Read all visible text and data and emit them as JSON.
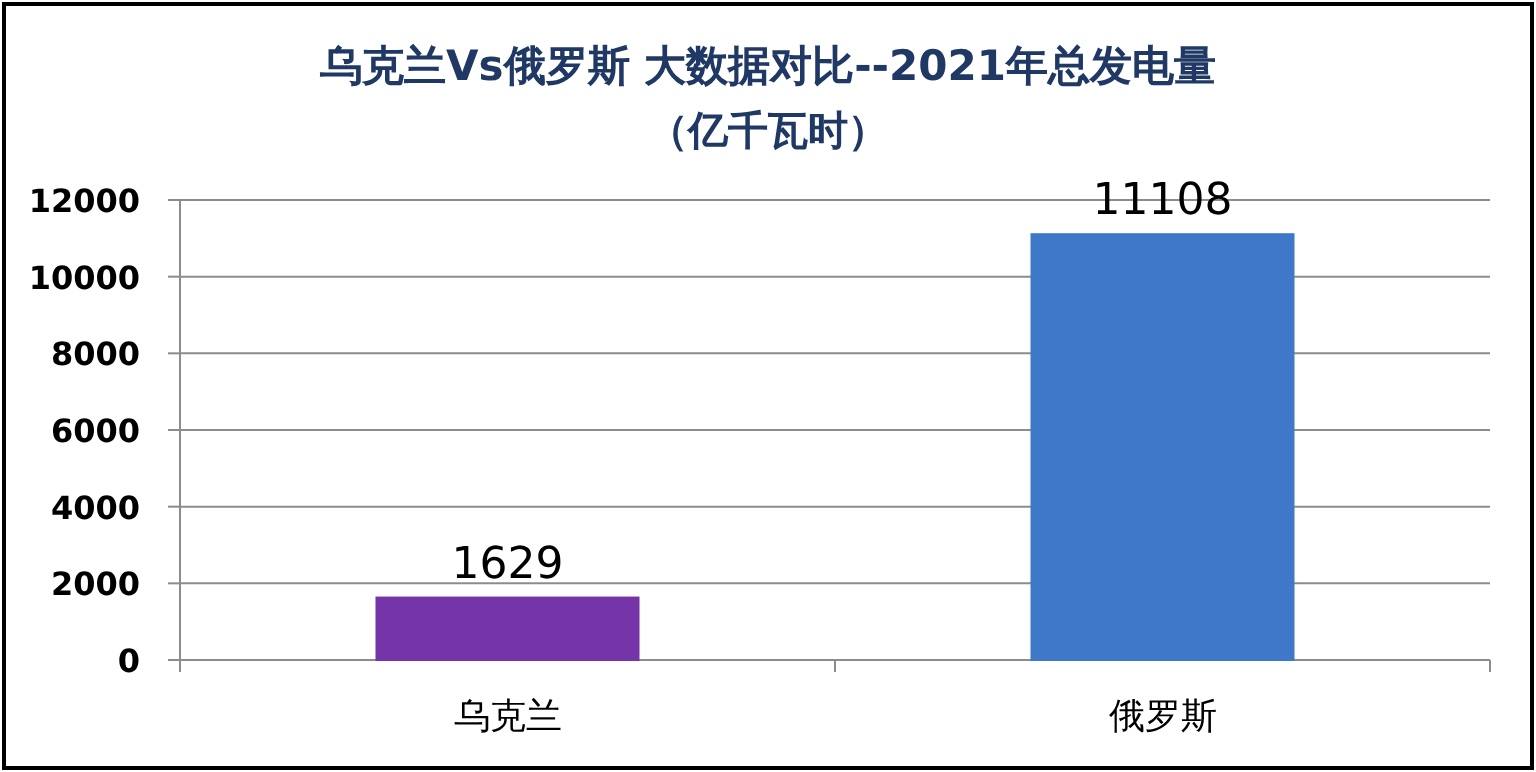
{
  "chart_data": {
    "type": "bar",
    "title": "乌克兰Vs俄罗斯 大数据对比--2021年总发电量",
    "subtitle": "（亿千瓦时）",
    "categories": [
      "乌克兰",
      "俄罗斯"
    ],
    "values": [
      1629,
      11108
    ],
    "colors": [
      "#7535a8",
      "#3f78c8"
    ],
    "ylim": [
      0,
      12000
    ],
    "yticks": [
      0,
      2000,
      4000,
      6000,
      8000,
      10000,
      12000
    ],
    "grid": "y",
    "data_labels": true
  }
}
